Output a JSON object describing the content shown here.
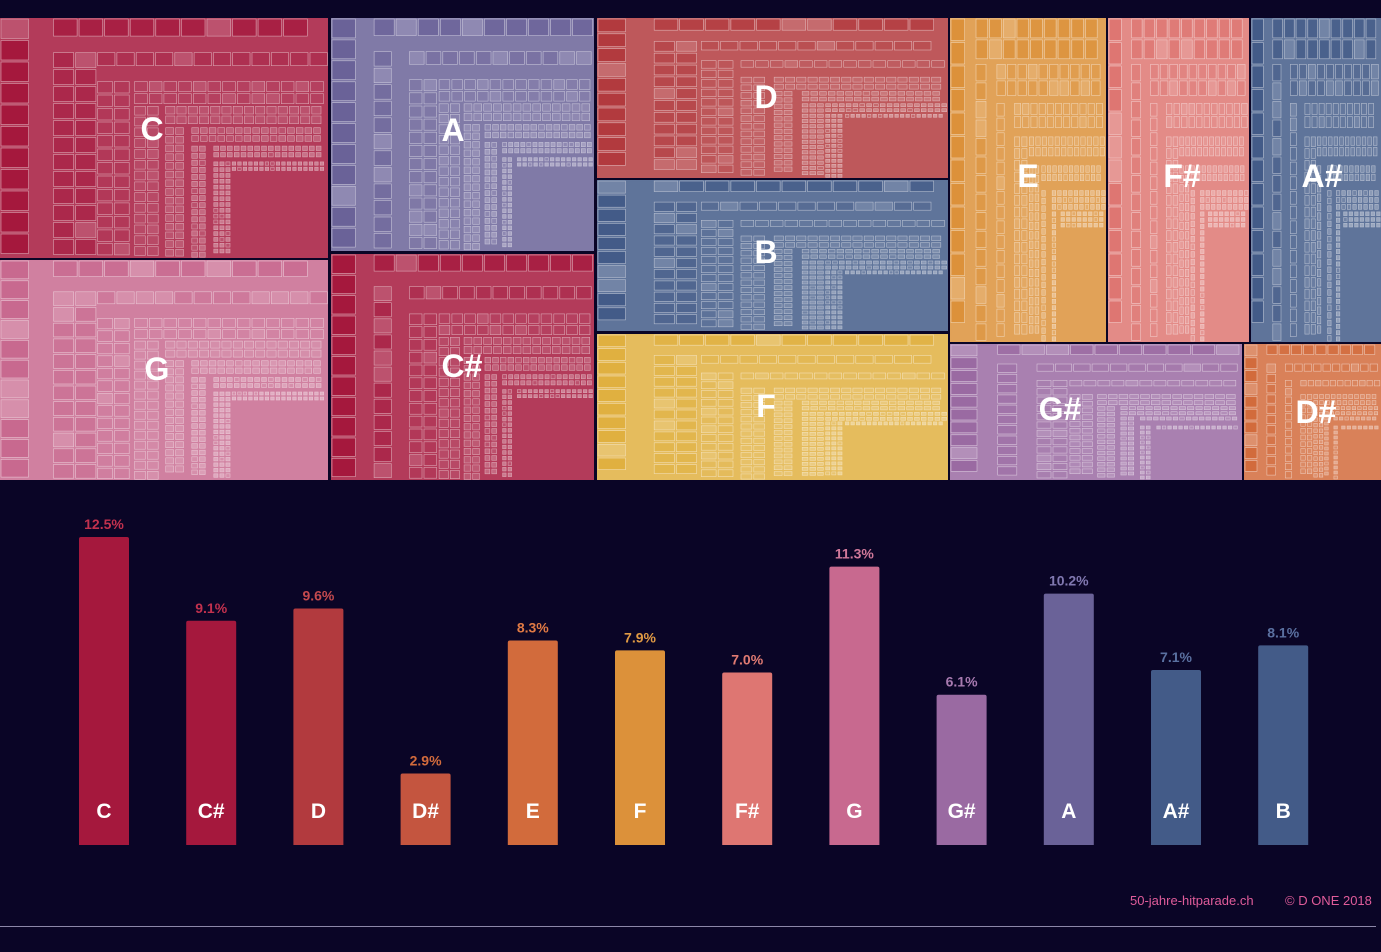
{
  "footer": {
    "site": "50-jahre-hitparade.ch",
    "copyright": "© D ONE 2018"
  },
  "chart_data": [
    {
      "type": "treemap",
      "description_level": "keys by number of songs",
      "tiles": [
        {
          "key": "C",
          "color": "#a5183d"
        },
        {
          "key": "G",
          "color": "#c8698f"
        },
        {
          "key": "A",
          "color": "#6a6298"
        },
        {
          "key": "C#",
          "color": "#a5183d"
        },
        {
          "key": "D",
          "color": "#b23a3e"
        },
        {
          "key": "B",
          "color": "#435b88"
        },
        {
          "key": "F",
          "color": "#e0b040"
        },
        {
          "key": "E",
          "color": "#dc913a"
        },
        {
          "key": "F#",
          "color": "#de7672"
        },
        {
          "key": "A#",
          "color": "#435b88"
        },
        {
          "key": "G#",
          "color": "#9a6aa2"
        },
        {
          "key": "D#",
          "color": "#d26b3c"
        }
      ]
    },
    {
      "type": "bar",
      "categories": [
        "C",
        "C#",
        "D",
        "D#",
        "E",
        "F",
        "F#",
        "G",
        "G#",
        "A",
        "A#",
        "B"
      ],
      "values": [
        12.5,
        9.1,
        9.6,
        2.9,
        8.3,
        7.9,
        7.0,
        11.3,
        6.1,
        10.2,
        7.1,
        8.1
      ],
      "value_labels": [
        "12.5%",
        "9.1%",
        "9.6%",
        "2.9%",
        "8.3%",
        "7.9%",
        "7.0%",
        "11.3%",
        "6.1%",
        "10.2%",
        "7.1%",
        "8.1%"
      ],
      "colors": [
        "#a5183d",
        "#a5183d",
        "#b23a3e",
        "#c4553f",
        "#d26b3c",
        "#dc913a",
        "#de7672",
        "#c8698f",
        "#9a6aa2",
        "#6a6298",
        "#435b88",
        "#435b88"
      ],
      "label_colors": [
        "#c2314e",
        "#c2314e",
        "#c44a4e",
        "#d26b3c",
        "#e07a44",
        "#e09a44",
        "#e07a72",
        "#d0789a",
        "#a87ab0",
        "#8078b0",
        "#5a70a0",
        "#5a70a0"
      ],
      "ylim": [
        0,
        12.5
      ],
      "title": "",
      "xlabel": "",
      "ylabel": ""
    }
  ]
}
